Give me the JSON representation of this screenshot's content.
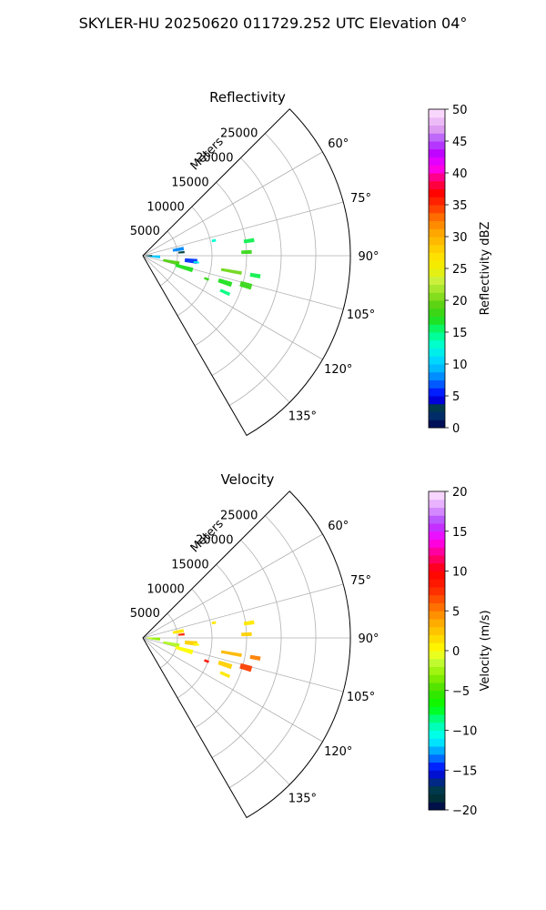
{
  "figure_title": "SKYLER-HU  20250620  011729.252 UTC Elevation 04°",
  "chart_data": [
    {
      "type": "polar-sector",
      "title": "Reflectivity",
      "range_label": "Meters",
      "azimuth_range": [
        45,
        150
      ],
      "range_max": 30000,
      "range_ticks": [
        5000,
        10000,
        15000,
        20000,
        25000
      ],
      "range_tick_labels": [
        "5000",
        "10000",
        "15000",
        "20000",
        "25000"
      ],
      "azimuth_ticks": [
        60,
        75,
        90,
        105,
        120,
        135
      ],
      "azimuth_tick_labels": [
        "60°",
        "75°",
        "90°",
        "105°",
        "120°",
        "135°"
      ],
      "grid": true,
      "colorbar": {
        "label": "Reflectivity dBZ",
        "min": 0,
        "max": 50,
        "ticks": [
          0,
          5,
          10,
          15,
          20,
          25,
          30,
          35,
          40,
          45,
          50
        ],
        "tick_labels": [
          "0",
          "5",
          "10",
          "15",
          "20",
          "25",
          "30",
          "35",
          "40",
          "45",
          "50"
        ]
      },
      "echoes": [
        {
          "az": 80,
          "r": 5200,
          "span_r": 1600,
          "span_az": 5,
          "value": 8
        },
        {
          "az": 85,
          "r": 5600,
          "span_r": 900,
          "span_az": 3,
          "value": 3
        },
        {
          "az": 96,
          "r": 7000,
          "span_r": 1800,
          "span_az": 5,
          "value": 6
        },
        {
          "az": 102,
          "r": 4200,
          "span_r": 2400,
          "span_az": 6,
          "value": 19
        },
        {
          "az": 106,
          "r": 6200,
          "span_r": 2600,
          "span_az": 5,
          "value": 17
        },
        {
          "az": 94,
          "r": 1600,
          "span_r": 1800,
          "span_az": 10,
          "value": 10
        },
        {
          "az": 90,
          "r": 900,
          "span_r": 900,
          "span_az": 10,
          "value": 3
        },
        {
          "az": 100,
          "r": 13000,
          "span_r": 3000,
          "span_az": 2,
          "value": 20
        },
        {
          "az": 108,
          "r": 12500,
          "span_r": 2000,
          "span_az": 3,
          "value": 17
        },
        {
          "az": 106,
          "r": 15500,
          "span_r": 1700,
          "span_az": 3,
          "value": 18
        },
        {
          "az": 100,
          "r": 16500,
          "span_r": 1500,
          "span_az": 2,
          "value": 16
        },
        {
          "az": 82,
          "r": 15500,
          "span_r": 1500,
          "span_az": 2,
          "value": 16
        },
        {
          "az": 88,
          "r": 15000,
          "span_r": 1500,
          "span_az": 2,
          "value": 18
        },
        {
          "az": 114,
          "r": 13000,
          "span_r": 1500,
          "span_az": 2,
          "value": 15
        },
        {
          "az": 78,
          "r": 10500,
          "span_r": 600,
          "span_az": 2,
          "value": 13
        },
        {
          "az": 97,
          "r": 7800,
          "span_r": 800,
          "span_az": 2,
          "value": 12
        },
        {
          "az": 110,
          "r": 9800,
          "span_r": 700,
          "span_az": 2,
          "value": 18
        }
      ]
    },
    {
      "type": "polar-sector",
      "title": "Velocity",
      "range_label": "Meters",
      "azimuth_range": [
        45,
        150
      ],
      "range_max": 30000,
      "range_ticks": [
        5000,
        10000,
        15000,
        20000,
        25000
      ],
      "range_tick_labels": [
        "5000",
        "10000",
        "15000",
        "20000",
        "25000"
      ],
      "azimuth_ticks": [
        60,
        75,
        90,
        105,
        120,
        135
      ],
      "azimuth_tick_labels": [
        "60°",
        "75°",
        "90°",
        "105°",
        "120°",
        "135°"
      ],
      "grid": true,
      "colorbar": {
        "label": "Velocity (m/s)",
        "min": -20,
        "max": 20,
        "ticks": [
          -20,
          -15,
          -10,
          -5,
          0,
          5,
          10,
          15,
          20
        ],
        "tick_labels": [
          "−20",
          "−15",
          "−10",
          "−5",
          "0",
          "5",
          "10",
          "15",
          "20"
        ]
      },
      "echoes": [
        {
          "az": 80,
          "r": 5200,
          "span_r": 1600,
          "span_az": 5,
          "value": 1
        },
        {
          "az": 85,
          "r": 5600,
          "span_r": 900,
          "span_az": 3,
          "value": 8
        },
        {
          "az": 96,
          "r": 7000,
          "span_r": 1800,
          "span_az": 5,
          "value": 2
        },
        {
          "az": 102,
          "r": 4200,
          "span_r": 2400,
          "span_az": 6,
          "value": -2
        },
        {
          "az": 106,
          "r": 6200,
          "span_r": 2600,
          "span_az": 5,
          "value": 0
        },
        {
          "az": 94,
          "r": 1600,
          "span_r": 1800,
          "span_az": 10,
          "value": -3
        },
        {
          "az": 90,
          "r": 900,
          "span_r": 900,
          "span_az": 10,
          "value": -1
        },
        {
          "az": 100,
          "r": 13000,
          "span_r": 3000,
          "span_az": 2,
          "value": 3
        },
        {
          "az": 108,
          "r": 12500,
          "span_r": 2000,
          "span_az": 3,
          "value": 2
        },
        {
          "az": 106,
          "r": 15500,
          "span_r": 1700,
          "span_az": 3,
          "value": 7
        },
        {
          "az": 100,
          "r": 16500,
          "span_r": 1500,
          "span_az": 2,
          "value": 5
        },
        {
          "az": 82,
          "r": 15500,
          "span_r": 1500,
          "span_az": 2,
          "value": 1
        },
        {
          "az": 88,
          "r": 15000,
          "span_r": 1500,
          "span_az": 2,
          "value": 2
        },
        {
          "az": 114,
          "r": 13000,
          "span_r": 1500,
          "span_az": 2,
          "value": 1
        },
        {
          "az": 78,
          "r": 10500,
          "span_r": 600,
          "span_az": 2,
          "value": 1
        },
        {
          "az": 97,
          "r": 7800,
          "span_r": 800,
          "span_az": 2,
          "value": 0
        },
        {
          "az": 110,
          "r": 9800,
          "span_r": 700,
          "span_az": 2,
          "value": 9
        }
      ]
    }
  ]
}
